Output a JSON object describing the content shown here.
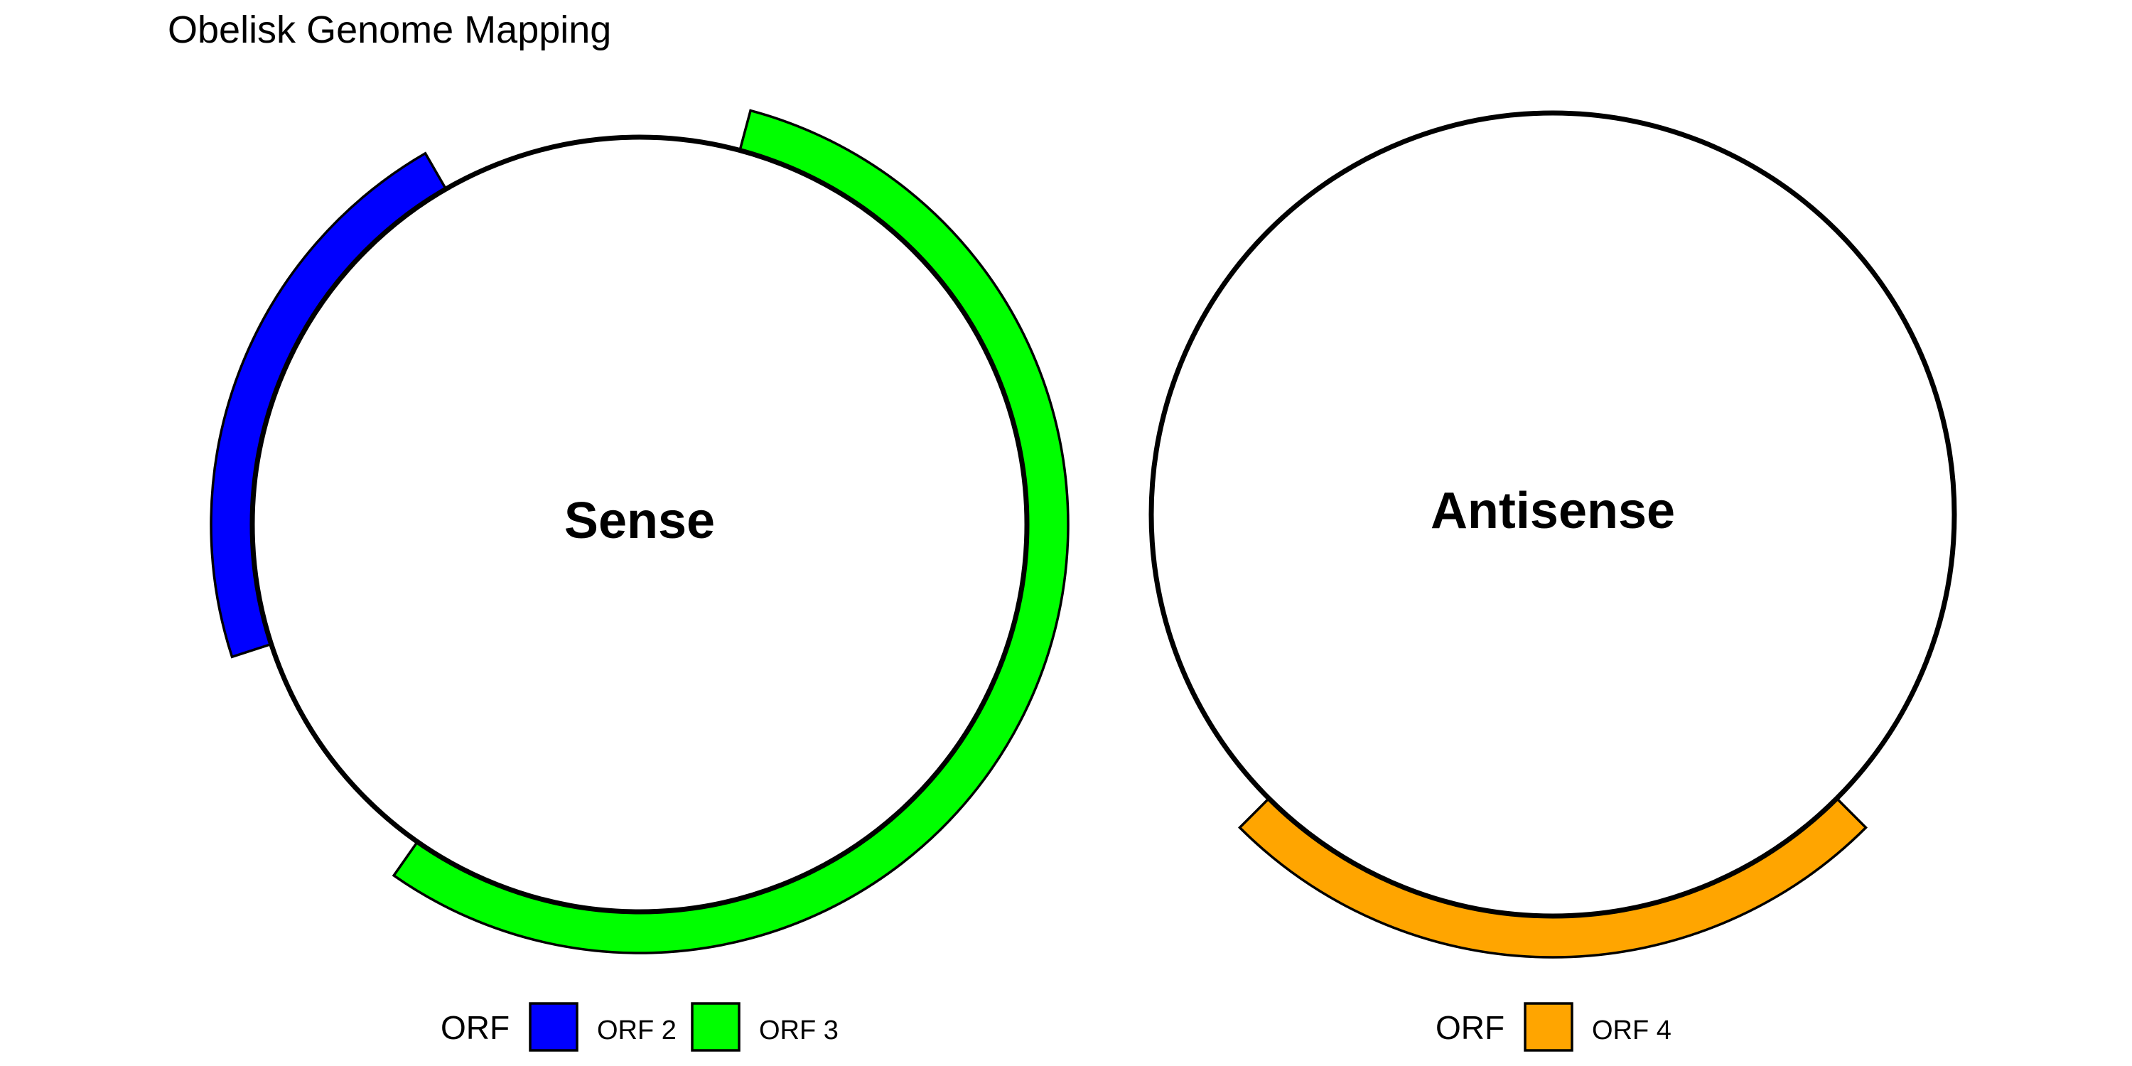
{
  "title": "Obelisk Genome Mapping",
  "colors": {
    "ORF 2": "#0000ff",
    "ORF 3": "#00ff00",
    "ORF 4": "#ffa500"
  },
  "chart_data": [
    {
      "type": "circular-genome-map",
      "strand": "Sense",
      "center_label": "Sense",
      "legend_title": "ORF",
      "legend": [
        {
          "label": "ORF 2",
          "color": "#0000ff"
        },
        {
          "label": "ORF 3",
          "color": "#00ff00"
        }
      ],
      "arcs": [
        {
          "name": "ORF 2",
          "color": "#0000ff",
          "start_deg": 252,
          "end_deg": 330
        },
        {
          "name": "ORF 3",
          "color": "#00ff00",
          "start_deg": 15,
          "end_deg": 215
        }
      ]
    },
    {
      "type": "circular-genome-map",
      "strand": "Antisense",
      "center_label": "Antisense",
      "legend_title": "ORF",
      "legend": [
        {
          "label": "ORF 4",
          "color": "#ffa500"
        }
      ],
      "arcs": [
        {
          "name": "ORF 4",
          "color": "#ffa500",
          "start_deg": 135,
          "end_deg": 225
        }
      ]
    }
  ]
}
